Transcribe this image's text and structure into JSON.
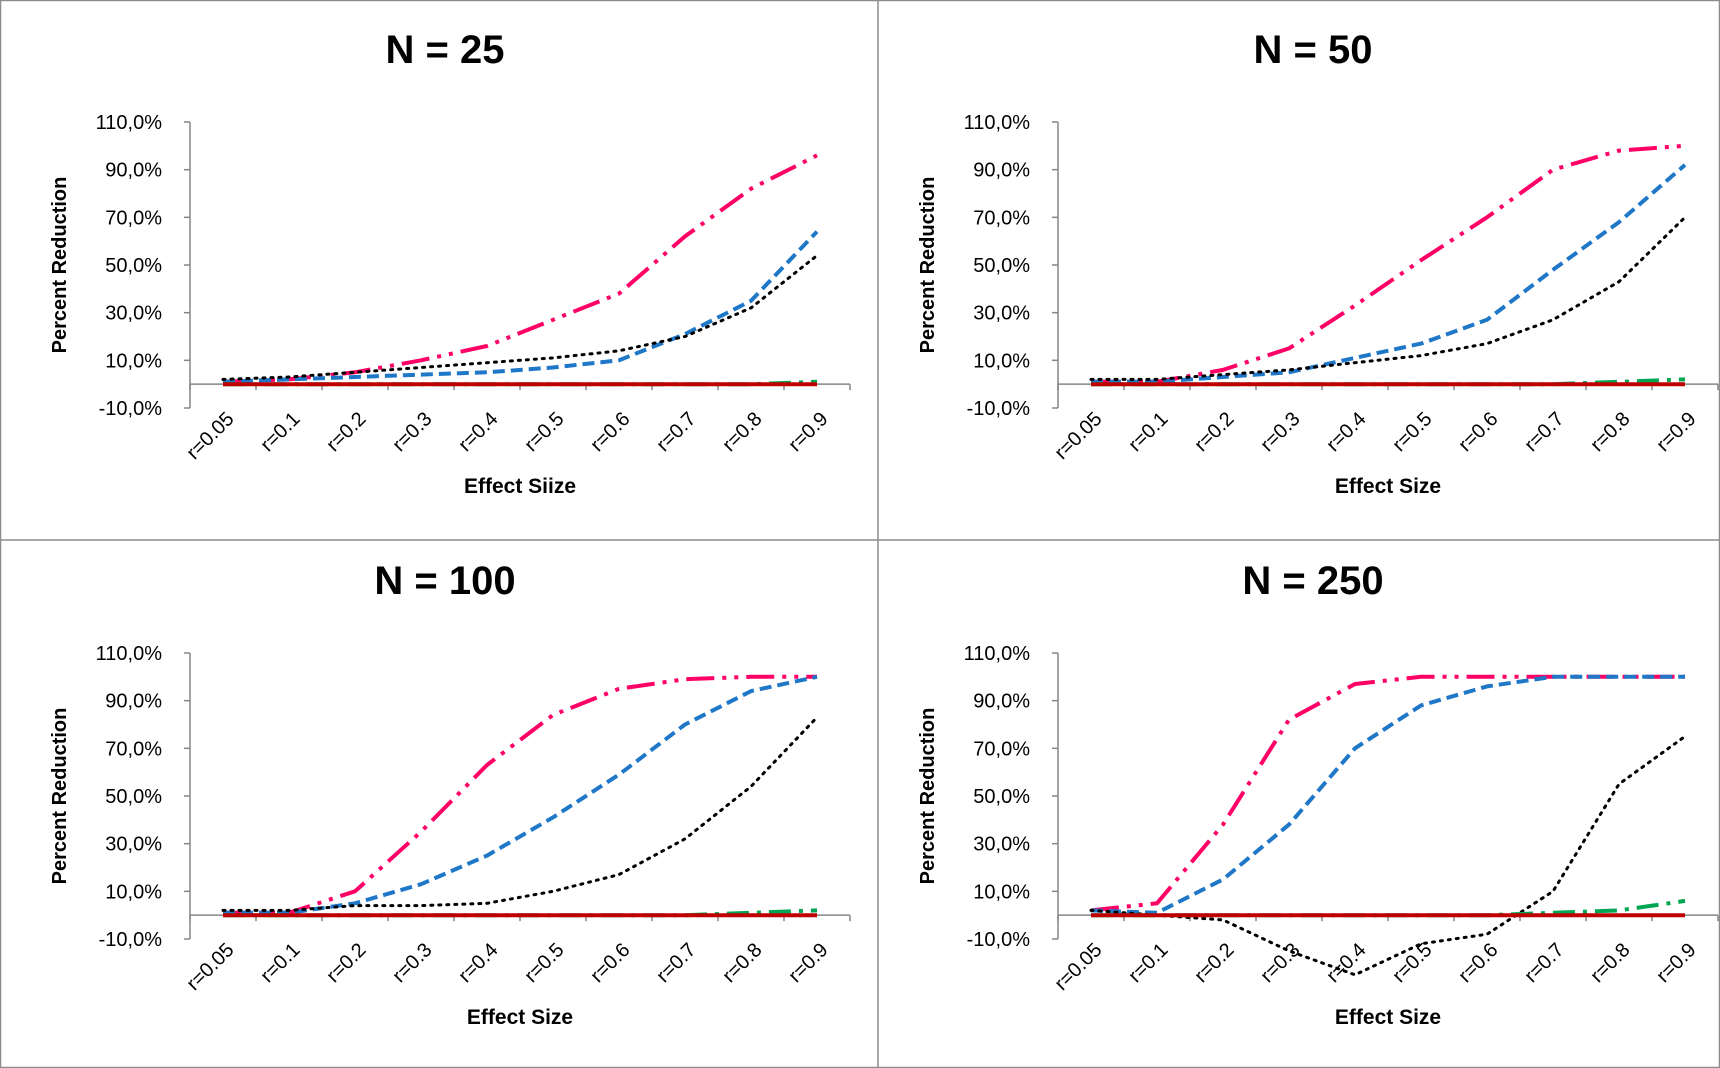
{
  "chart_data": [
    {
      "type": "line",
      "title": "N = 25",
      "xlabel": "Effect Siize",
      "ylabel": "Percent Reduction",
      "ylim": [
        -10,
        110
      ],
      "yticks": [
        "-10,0%",
        "10,0%",
        "30,0%",
        "50,0%",
        "70,0%",
        "90,0%",
        "110,0%"
      ],
      "categories": [
        "r=0.05",
        "r=0.1",
        "r=0.2",
        "r=0.3",
        "r=0.4",
        "r=0.5",
        "r=0.6",
        "r=0.7",
        "r=0.8",
        "r=0.9"
      ],
      "series": [
        {
          "style": "dashdotdot",
          "color": "#ff0066",
          "values": [
            1,
            2,
            5,
            10,
            16,
            27,
            38,
            62,
            82,
            96
          ]
        },
        {
          "style": "dash",
          "color": "#1f77c8",
          "values": [
            1,
            2,
            3,
            4,
            5,
            7,
            10,
            21,
            35,
            64
          ]
        },
        {
          "style": "dot",
          "color": "#000000",
          "values": [
            2,
            3,
            5,
            7,
            9,
            11,
            14,
            20,
            32,
            54
          ]
        },
        {
          "style": "dashdot",
          "color": "#00a651",
          "values": [
            0,
            0,
            0,
            0,
            0,
            0,
            0,
            0,
            0,
            1
          ]
        },
        {
          "style": "solid",
          "color": "#c00000",
          "values": [
            0,
            0,
            0,
            0,
            0,
            0,
            0,
            0,
            0,
            0
          ]
        }
      ]
    },
    {
      "type": "line",
      "title": "N =  50",
      "xlabel": "Effect Size",
      "ylabel": "Percent Reduction",
      "ylim": [
        -10,
        110
      ],
      "yticks": [
        "-10,0%",
        "10,0%",
        "30,0%",
        "50,0%",
        "70,0%",
        "90,0%",
        "110,0%"
      ],
      "categories": [
        "r=0.05",
        "r=0.1",
        "r=0.2",
        "r=0.3",
        "r=0.4",
        "r=0.5",
        "r=0.6",
        "r=0.7",
        "r=0.8",
        "r=0.9"
      ],
      "series": [
        {
          "style": "dashdotdot",
          "color": "#ff0066",
          "values": [
            1,
            1,
            6,
            15,
            33,
            52,
            70,
            90,
            98,
            100
          ]
        },
        {
          "style": "dash",
          "color": "#1f77c8",
          "values": [
            1,
            1,
            3,
            5,
            11,
            17,
            27,
            48,
            68,
            92
          ]
        },
        {
          "style": "dot",
          "color": "#000000",
          "values": [
            2,
            2,
            4,
            6,
            9,
            12,
            17,
            27,
            43,
            70
          ]
        },
        {
          "style": "dashdot",
          "color": "#00a651",
          "values": [
            0,
            0,
            0,
            0,
            0,
            0,
            0,
            0,
            1,
            2
          ]
        },
        {
          "style": "solid",
          "color": "#c00000",
          "values": [
            0,
            0,
            0,
            0,
            0,
            0,
            0,
            0,
            0,
            0
          ]
        }
      ]
    },
    {
      "type": "line",
      "title": "N = 100",
      "xlabel": "Effect Size",
      "ylabel": "Percent Reduction",
      "ylim": [
        -10,
        110
      ],
      "yticks": [
        "-10,0%",
        "10,0%",
        "30,0%",
        "50,0%",
        "70,0%",
        "90,0%",
        "110,0%"
      ],
      "categories": [
        "r=0.05",
        "r=0.1",
        "r=0.2",
        "r=0.3",
        "r=0.4",
        "r=0.5",
        "r=0.6",
        "r=0.7",
        "r=0.8",
        "r=0.9"
      ],
      "series": [
        {
          "style": "dashdotdot",
          "color": "#ff0066",
          "values": [
            1,
            1,
            10,
            35,
            63,
            84,
            95,
            99,
            100,
            100
          ]
        },
        {
          "style": "dash",
          "color": "#1f77c8",
          "values": [
            1,
            1,
            5,
            13,
            25,
            41,
            59,
            80,
            94,
            100
          ]
        },
        {
          "style": "dot",
          "color": "#000000",
          "values": [
            2,
            2,
            4,
            4,
            5,
            10,
            17,
            32,
            54,
            83
          ]
        },
        {
          "style": "dashdot",
          "color": "#00a651",
          "values": [
            0,
            0,
            0,
            0,
            0,
            0,
            0,
            0,
            1,
            2
          ]
        },
        {
          "style": "solid",
          "color": "#c00000",
          "values": [
            0,
            0,
            0,
            0,
            0,
            0,
            0,
            0,
            0,
            0
          ]
        }
      ]
    },
    {
      "type": "line",
      "title": "N = 250",
      "xlabel": "Effect Size",
      "ylabel": "Percent Reduction",
      "ylim": [
        -10,
        110
      ],
      "yticks": [
        "-10,0%",
        "10,0%",
        "30,0%",
        "50,0%",
        "70,0%",
        "90,0%",
        "110,0%"
      ],
      "categories": [
        "r=0.05",
        "r=0.1",
        "r=0.2",
        "r=0.3",
        "r=0.4",
        "r=0.5",
        "r=0.6",
        "r=0.7",
        "r=0.8",
        "r=0.9"
      ],
      "series": [
        {
          "style": "dashdotdot",
          "color": "#ff0066",
          "values": [
            2,
            5,
            38,
            82,
            97,
            100,
            100,
            100,
            100,
            100
          ]
        },
        {
          "style": "dash",
          "color": "#1f77c8",
          "values": [
            2,
            1,
            15,
            38,
            70,
            88,
            96,
            100,
            100,
            100
          ]
        },
        {
          "style": "dot",
          "color": "#000000",
          "values": [
            2,
            0,
            -2,
            -15,
            -25,
            -12,
            -8,
            10,
            55,
            75
          ]
        },
        {
          "style": "dashdot",
          "color": "#00a651",
          "values": [
            0,
            0,
            0,
            0,
            0,
            0,
            0,
            1,
            2,
            6
          ]
        },
        {
          "style": "solid",
          "color": "#c00000",
          "values": [
            0,
            0,
            0,
            0,
            0,
            0,
            0,
            0,
            0,
            0
          ]
        }
      ]
    }
  ]
}
